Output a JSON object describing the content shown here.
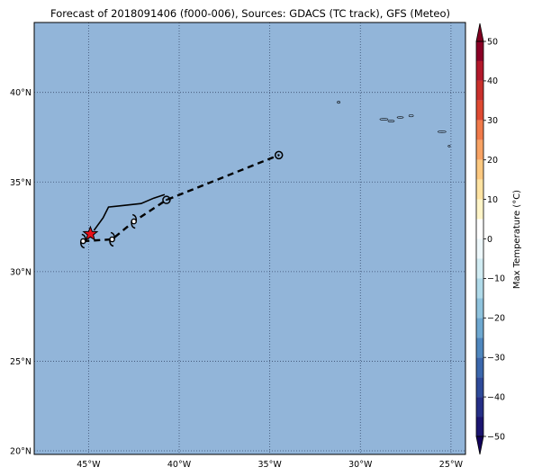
{
  "title": "Forecast of 2018091406 (f000-006), Sources: GDACS (TC track), GFS (Meteo)",
  "map": {
    "lon_range": [
      -48,
      -24.2
    ],
    "lat_range": [
      19.8,
      43.9
    ],
    "lon_ticks": [
      {
        "value": -45,
        "label": "45°W"
      },
      {
        "value": -40,
        "label": "40°W"
      },
      {
        "value": -35,
        "label": "35°W"
      },
      {
        "value": -30,
        "label": "30°W"
      },
      {
        "value": -25,
        "label": "25°W"
      }
    ],
    "lat_ticks": [
      {
        "value": 20,
        "label": "20°N"
      },
      {
        "value": 25,
        "label": "25°N"
      },
      {
        "value": 30,
        "label": "30°N"
      },
      {
        "value": 35,
        "label": "35°N"
      },
      {
        "value": 40,
        "label": "40°N"
      }
    ],
    "grid": true,
    "ocean_color": "#92b5d9",
    "track": {
      "style": "dashed",
      "points": [
        {
          "lon": -45.3,
          "lat": 31.7,
          "symbol": "cyclone"
        },
        {
          "lon": -43.7,
          "lat": 31.8,
          "symbol": "cyclone"
        },
        {
          "lon": -42.5,
          "lat": 32.8,
          "symbol": "cyclone"
        },
        {
          "lon": -40.7,
          "lat": 34.0,
          "symbol": "circle"
        },
        {
          "lon": -34.5,
          "lat": 36.5,
          "symbol": "circle"
        }
      ]
    },
    "past_track": [
      {
        "lon": -44.7,
        "lat": 32.3
      },
      {
        "lon": -44.2,
        "lat": 33.0
      },
      {
        "lon": -43.9,
        "lat": 33.6
      },
      {
        "lon": -43.0,
        "lat": 33.7
      },
      {
        "lon": -42.1,
        "lat": 33.8
      },
      {
        "lon": -41.4,
        "lat": 34.1
      },
      {
        "lon": -40.8,
        "lat": 34.3
      }
    ],
    "current_position": {
      "lon": -44.9,
      "lat": 32.1,
      "marker": "star",
      "color": "#e8101a"
    },
    "islands": [
      {
        "lon": -31.2,
        "lat": 39.45,
        "w": 0.15,
        "h": 0.12
      },
      {
        "lon": -28.7,
        "lat": 38.5,
        "w": 0.45,
        "h": 0.1
      },
      {
        "lon": -28.3,
        "lat": 38.4,
        "w": 0.35,
        "h": 0.1
      },
      {
        "lon": -27.8,
        "lat": 38.6,
        "w": 0.35,
        "h": 0.08
      },
      {
        "lon": -27.2,
        "lat": 38.7,
        "w": 0.25,
        "h": 0.12
      },
      {
        "lon": -25.5,
        "lat": 37.8,
        "w": 0.45,
        "h": 0.08
      },
      {
        "lon": -25.1,
        "lat": 37.0,
        "w": 0.12,
        "h": 0.05
      }
    ]
  },
  "colorbar": {
    "label": "Max Temperature (°C)",
    "min": -50,
    "max": 50,
    "ticks": [
      {
        "value": 50,
        "label": "50"
      },
      {
        "value": 40,
        "label": "40"
      },
      {
        "value": 30,
        "label": "30"
      },
      {
        "value": 20,
        "label": "20"
      },
      {
        "value": 10,
        "label": "10"
      },
      {
        "value": 0,
        "label": "0"
      },
      {
        "value": -10,
        "label": "−10"
      },
      {
        "value": -20,
        "label": "−20"
      },
      {
        "value": -30,
        "label": "−30"
      },
      {
        "value": -40,
        "label": "−40"
      },
      {
        "value": -50,
        "label": "−50"
      }
    ],
    "bands": [
      {
        "from": 45,
        "to": 50,
        "color": "#8a0026"
      },
      {
        "from": 40,
        "to": 45,
        "color": "#b2182b"
      },
      {
        "from": 35,
        "to": 40,
        "color": "#c9302c"
      },
      {
        "from": 30,
        "to": 35,
        "color": "#de4a32"
      },
      {
        "from": 25,
        "to": 30,
        "color": "#f07a4a"
      },
      {
        "from": 20,
        "to": 25,
        "color": "#f8a364"
      },
      {
        "from": 15,
        "to": 20,
        "color": "#fcc980"
      },
      {
        "from": 10,
        "to": 15,
        "color": "#fee3a2"
      },
      {
        "from": 5,
        "to": 10,
        "color": "#fff5c8"
      },
      {
        "from": 0,
        "to": 5,
        "color": "#ffffff"
      },
      {
        "from": -5,
        "to": 0,
        "color": "#eef8fb"
      },
      {
        "from": -10,
        "to": -5,
        "color": "#d1ecf3"
      },
      {
        "from": -15,
        "to": -10,
        "color": "#b0dae9"
      },
      {
        "from": -20,
        "to": -15,
        "color": "#8fc3dd"
      },
      {
        "from": -25,
        "to": -20,
        "color": "#6ea8d0"
      },
      {
        "from": -30,
        "to": -25,
        "color": "#4f87be"
      },
      {
        "from": -35,
        "to": -30,
        "color": "#3b67ac"
      },
      {
        "from": -40,
        "to": -35,
        "color": "#2e4a99"
      },
      {
        "from": -45,
        "to": -40,
        "color": "#252f86"
      },
      {
        "from": -50,
        "to": -45,
        "color": "#1b1570"
      }
    ],
    "extend_max_color": "#800020",
    "extend_min_color": "#12005a"
  }
}
